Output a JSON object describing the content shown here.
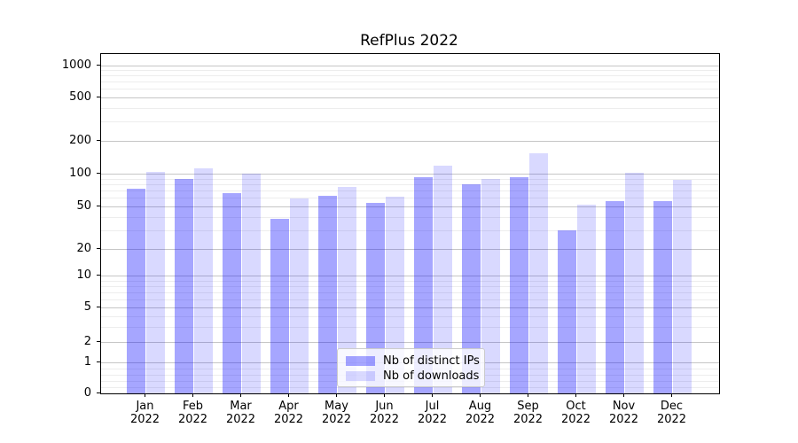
{
  "figure": {
    "background": "#ffffff",
    "frame_color": "#000000"
  },
  "chart_data": {
    "type": "bar",
    "title": "RefPlus 2022",
    "categories": [
      "Jan",
      "Feb",
      "Mar",
      "Apr",
      "May",
      "Jun",
      "Jul",
      "Aug",
      "Sep",
      "Oct",
      "Nov",
      "Dec"
    ],
    "category_year": "2022",
    "series": [
      {
        "name": "Nb of distinct IPs",
        "color": "rgba(0,0,255,0.35)",
        "values": [
          74,
          90,
          67,
          39,
          64,
          55,
          93,
          80,
          93,
          30,
          57,
          57
        ]
      },
      {
        "name": "Nb of downloads",
        "color": "rgba(0,0,255,0.15)",
        "values": [
          104,
          112,
          100,
          60,
          76,
          62,
          120,
          90,
          156,
          53,
          102,
          88
        ]
      }
    ],
    "yscale": {
      "type": "symlog-like",
      "ticks": [
        0,
        1,
        2,
        5,
        10,
        20,
        50,
        100,
        200,
        500,
        1000
      ],
      "tick_labels": [
        "0",
        "1",
        "2",
        "5",
        "10",
        "20",
        "50",
        "100",
        "200",
        "500",
        "1000"
      ],
      "minor_ticks": [
        0.2,
        0.4,
        0.6,
        0.8,
        3,
        4,
        6,
        7,
        8,
        9,
        30,
        40,
        60,
        70,
        80,
        90,
        300,
        400,
        600,
        700,
        800,
        900
      ],
      "anchors": [
        [
          0,
          1.0
        ],
        [
          1,
          0.9087
        ],
        [
          2,
          0.8505
        ],
        [
          5,
          0.748
        ],
        [
          10,
          0.6548
        ],
        [
          20,
          0.5752
        ],
        [
          50,
          0.4513
        ],
        [
          100,
          0.3535
        ],
        [
          200,
          0.2564
        ],
        [
          500,
          0.1286
        ],
        [
          1000,
          0.0347
        ]
      ]
    },
    "grid": {
      "major_color": "#c6c6c6",
      "minor_color": "#ededed"
    },
    "legend": {
      "position": "bottom-center-inside"
    },
    "xlabel": "",
    "ylabel": ""
  }
}
